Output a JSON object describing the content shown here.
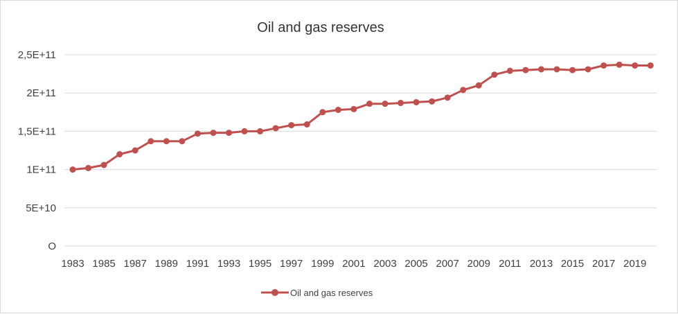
{
  "chart_data": {
    "type": "line",
    "title": "Oil and gas reserves",
    "xlabel": "",
    "ylabel": "",
    "ylim": [
      0,
      250000000000
    ],
    "y_ticks": [
      {
        "value": 0,
        "label": "O"
      },
      {
        "value": 50000000000,
        "label": "5E+10"
      },
      {
        "value": 100000000000,
        "label": "1E+11"
      },
      {
        "value": 150000000000,
        "label": "1,5E+11"
      },
      {
        "value": 200000000000,
        "label": "2E+11"
      },
      {
        "value": 250000000000,
        "label": "2,5E+11"
      }
    ],
    "x_ticks": [
      "1983",
      "1985",
      "1987",
      "1989",
      "1991",
      "1993",
      "1995",
      "1997",
      "1999",
      "2001",
      "2003",
      "2005",
      "2007",
      "2009",
      "2011",
      "2013",
      "2015",
      "2017",
      "2019"
    ],
    "grid": true,
    "legend": "bottom",
    "color": "#c0504d",
    "series": [
      {
        "name": "Oil and gas reserves",
        "x": [
          1983,
          1984,
          1985,
          1986,
          1987,
          1988,
          1989,
          1990,
          1991,
          1992,
          1993,
          1994,
          1995,
          1996,
          1997,
          1998,
          1999,
          2000,
          2001,
          2002,
          2003,
          2004,
          2005,
          2006,
          2007,
          2008,
          2009,
          2010,
          2011,
          2012,
          2013,
          2014,
          2015,
          2016,
          2017,
          2018,
          2019,
          2020
        ],
        "values": [
          100000000000,
          102000000000,
          106000000000,
          120000000000,
          125000000000,
          137000000000,
          137000000000,
          137000000000,
          147000000000,
          148000000000,
          148000000000,
          150000000000,
          150000000000,
          154000000000,
          158000000000,
          159000000000,
          175000000000,
          178000000000,
          179000000000,
          186000000000,
          186000000000,
          187000000000,
          188000000000,
          189000000000,
          194000000000,
          204000000000,
          210000000000,
          224000000000,
          229000000000,
          230000000000,
          231000000000,
          231000000000,
          230000000000,
          231000000000,
          236000000000,
          237000000000,
          236000000000,
          236000000000
        ]
      }
    ]
  }
}
